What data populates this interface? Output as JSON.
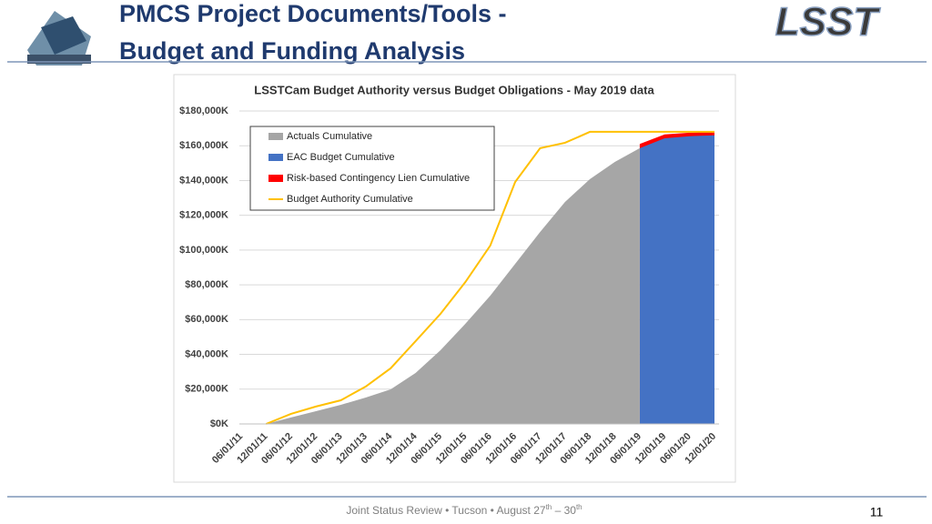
{
  "header": {
    "title_line1": "PMCS Project Documents/Tools -",
    "title_line2": "Budget and Funding Analysis",
    "logo_text": "LSST"
  },
  "chart_data": {
    "type": "area",
    "title": "LSSTCam Budget Authority versus Budget Obligations - May 2019 data",
    "categories": [
      "06/01/11",
      "12/01/11",
      "06/01/12",
      "12/01/12",
      "06/01/13",
      "12/01/13",
      "06/01/14",
      "12/01/14",
      "06/01/15",
      "12/01/15",
      "06/01/16",
      "12/01/16",
      "06/01/17",
      "12/01/17",
      "06/01/18",
      "12/01/18",
      "06/01/19",
      "12/01/19",
      "06/01/20",
      "12/01/20"
    ],
    "series": [
      {
        "name": "Actuals Cumulative",
        "type": "area",
        "color": "#a6a6a6",
        "values": [
          null,
          0,
          3700,
          7300,
          11000,
          15200,
          19900,
          29300,
          42400,
          57600,
          73800,
          92100,
          110400,
          127700,
          140800,
          150700,
          158600,
          null,
          null,
          null
        ]
      },
      {
        "name": "EAC Budget Cumulative",
        "type": "area",
        "color": "#4472c4",
        "values": [
          null,
          null,
          null,
          null,
          null,
          null,
          null,
          null,
          null,
          null,
          null,
          null,
          null,
          null,
          null,
          null,
          158600,
          164300,
          165500,
          166000
        ]
      },
      {
        "name": "Risk-based Contingency Lien Cumulative",
        "type": "area",
        "color": "#ff0000",
        "values": [
          null,
          null,
          null,
          null,
          null,
          null,
          null,
          null,
          null,
          null,
          null,
          null,
          null,
          null,
          null,
          null,
          161000,
          166500,
          167500,
          168000
        ]
      },
      {
        "name": "Budget Authority Cumulative",
        "type": "line",
        "color": "#ffc000",
        "values": [
          null,
          0,
          5800,
          10000,
          13600,
          21500,
          32000,
          47600,
          63300,
          81600,
          102600,
          139200,
          158600,
          161700,
          168000,
          168000,
          168000,
          168000,
          168000,
          168000
        ]
      }
    ],
    "ylim": [
      0,
      180000
    ],
    "yticks": [
      {
        "value": 0,
        "label": "$0K"
      },
      {
        "value": 20000,
        "label": "$20,000K"
      },
      {
        "value": 40000,
        "label": "$40,000K"
      },
      {
        "value": 60000,
        "label": "$60,000K"
      },
      {
        "value": 80000,
        "label": "$80,000K"
      },
      {
        "value": 100000,
        "label": "$100,000K"
      },
      {
        "value": 120000,
        "label": "$120,000K"
      },
      {
        "value": 140000,
        "label": "$140,000K"
      },
      {
        "value": 160000,
        "label": "$160,000K"
      },
      {
        "value": 180000,
        "label": "$180,000K"
      }
    ],
    "grid": true,
    "legend": "upper left"
  },
  "footer": {
    "text1": "Joint Status Review • Tucson • August 27",
    "sup1": "th",
    "text2": " – 30",
    "sup2": "th",
    "page": "11"
  }
}
